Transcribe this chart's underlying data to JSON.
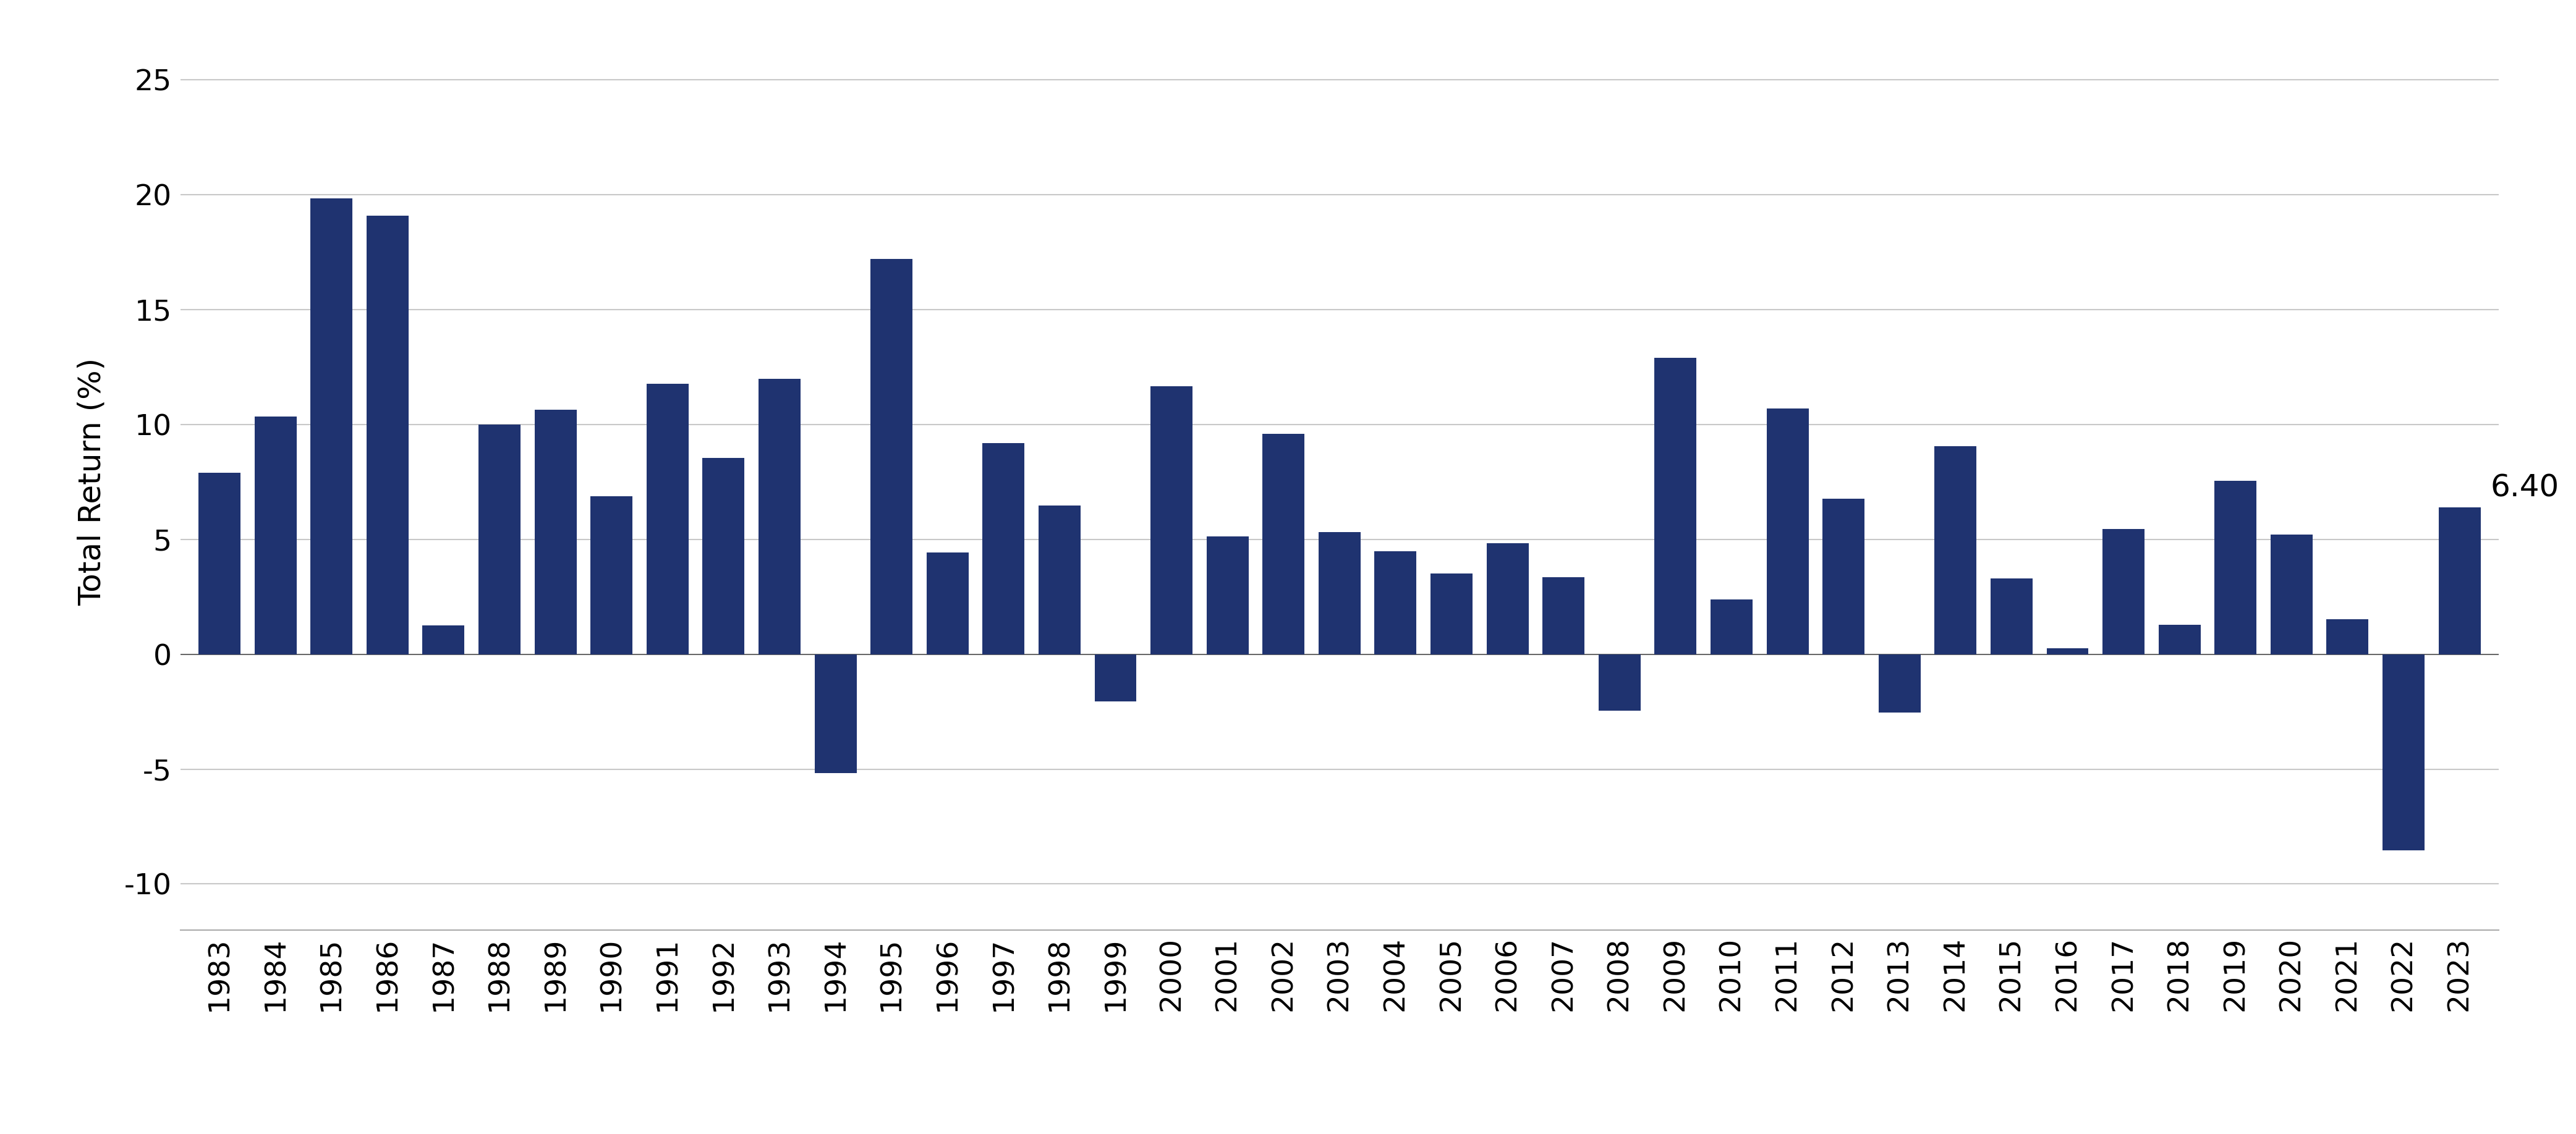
{
  "years": [
    1983,
    1984,
    1985,
    1986,
    1987,
    1988,
    1989,
    1990,
    1991,
    1992,
    1993,
    1994,
    1995,
    1996,
    1997,
    1998,
    1999,
    2000,
    2001,
    2002,
    2003,
    2004,
    2005,
    2006,
    2007,
    2008,
    2009,
    2010,
    2011,
    2012,
    2013,
    2014,
    2015,
    2016,
    2017,
    2018,
    2019,
    2020,
    2021,
    2022,
    2023
  ],
  "values": [
    7.91,
    10.35,
    19.85,
    19.1,
    1.25,
    10.0,
    10.64,
    6.89,
    11.78,
    8.55,
    11.98,
    -5.17,
    17.22,
    4.43,
    9.19,
    6.48,
    -2.06,
    11.68,
    5.13,
    9.6,
    5.31,
    4.48,
    3.51,
    4.84,
    3.36,
    -2.47,
    12.91,
    2.38,
    10.7,
    6.78,
    -2.55,
    9.05,
    3.3,
    0.25,
    5.45,
    1.28,
    7.54,
    5.21,
    1.52,
    -8.53,
    6.4
  ],
  "bar_color": "#1f3370",
  "annotated_year": 2023,
  "annotated_value": "6.40",
  "ylabel": "Total Return (%)",
  "ylim": [
    -12,
    27
  ],
  "yticks": [
    -10,
    -5,
    0,
    5,
    10,
    15,
    20,
    25
  ],
  "background_color": "#ffffff",
  "grid_color": "#c8c8c8",
  "annotation_fontsize": 36,
  "axis_label_fontsize": 36,
  "tick_fontsize": 34,
  "bar_width": 0.75
}
